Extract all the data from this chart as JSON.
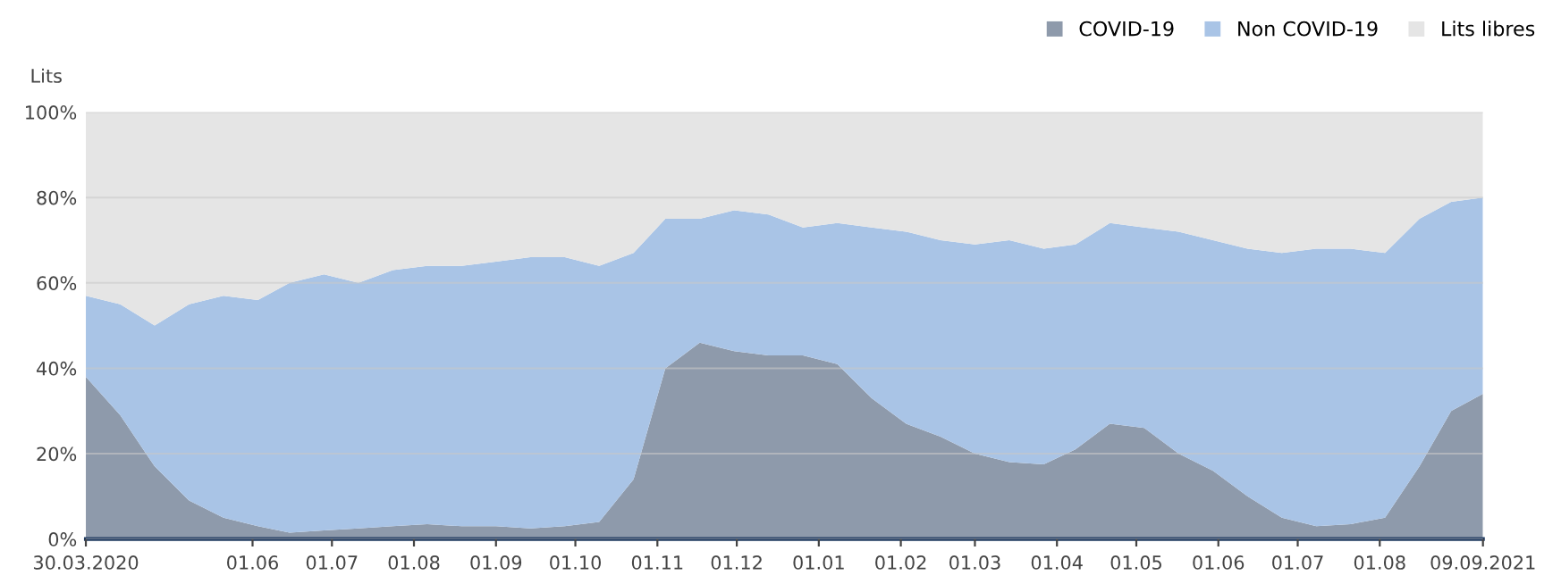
{
  "chart_data": {
    "type": "area",
    "stacked": true,
    "ylabel": "Lits",
    "legend": "top right",
    "grid": "y",
    "x": [
      "2020-03-30",
      "2020-04-12",
      "2020-04-25",
      "2020-05-08",
      "2020-05-21",
      "2020-06-03",
      "2020-06-15",
      "2020-06-28",
      "2020-07-11",
      "2020-07-24",
      "2020-08-06",
      "2020-08-19",
      "2020-09-01",
      "2020-09-14",
      "2020-09-27",
      "2020-10-10",
      "2020-10-23",
      "2020-11-04",
      "2020-11-17",
      "2020-11-30",
      "2020-12-13",
      "2020-12-26",
      "2021-01-08",
      "2021-01-21",
      "2021-02-03",
      "2021-02-16",
      "2021-03-01",
      "2021-03-14",
      "2021-03-27",
      "2021-04-08",
      "2021-04-21",
      "2021-05-04",
      "2021-05-17",
      "2021-05-30",
      "2021-06-12",
      "2021-06-25",
      "2021-07-08",
      "2021-07-21",
      "2021-08-03",
      "2021-08-16",
      "2021-08-28",
      "2021-09-09"
    ],
    "xlim": [
      "2020-03-30",
      "2021-09-09"
    ],
    "xticks": [
      {
        "value": "2020-03-30",
        "label": "30.03.2020"
      },
      {
        "value": "2020-06-01",
        "label": "01.06"
      },
      {
        "value": "2020-07-01",
        "label": "01.07"
      },
      {
        "value": "2020-08-01",
        "label": "01.08"
      },
      {
        "value": "2020-09-01",
        "label": "01.09"
      },
      {
        "value": "2020-10-01",
        "label": "01.10"
      },
      {
        "value": "2020-11-01",
        "label": "01.11"
      },
      {
        "value": "2020-12-01",
        "label": "01.12"
      },
      {
        "value": "2021-01-01",
        "label": "01.01"
      },
      {
        "value": "2021-02-01",
        "label": "01.02"
      },
      {
        "value": "2021-03-01",
        "label": "01.03"
      },
      {
        "value": "2021-04-01",
        "label": "01.04"
      },
      {
        "value": "2021-05-01",
        "label": "01.05"
      },
      {
        "value": "2021-06-01",
        "label": "01.06"
      },
      {
        "value": "2021-07-01",
        "label": "01.07"
      },
      {
        "value": "2021-08-01",
        "label": "01.08"
      },
      {
        "value": "2021-09-09",
        "label": "09.09.2021"
      }
    ],
    "ylim": [
      0,
      100
    ],
    "yticks": [
      {
        "value": 0,
        "label": "0%"
      },
      {
        "value": 20,
        "label": "20%"
      },
      {
        "value": 40,
        "label": "40%"
      },
      {
        "value": 60,
        "label": "60%"
      },
      {
        "value": 80,
        "label": "80%"
      },
      {
        "value": 100,
        "label": "100%"
      }
    ],
    "series": [
      {
        "name": "COVID-19",
        "color": "#8e9aab",
        "values": [
          38,
          29,
          17,
          9,
          5,
          3,
          1.5,
          2,
          2.5,
          3,
          3.5,
          3,
          3,
          2.5,
          3,
          4,
          14,
          40,
          46,
          44,
          43,
          43,
          41,
          33,
          27,
          24,
          20,
          18,
          17.5,
          21,
          27,
          26,
          20,
          16,
          10,
          5,
          3,
          3.5,
          5,
          17,
          30,
          34
        ]
      },
      {
        "name": "Non COVID-19",
        "color": "#a9c4e6",
        "values": [
          19,
          26,
          33,
          46,
          52,
          53,
          58.5,
          60,
          57.5,
          60,
          60.5,
          61,
          62,
          63.5,
          63,
          60,
          53,
          35,
          29,
          33,
          33,
          30,
          33,
          40,
          45,
          46,
          49,
          52,
          50.5,
          48,
          47,
          47,
          52,
          54,
          58,
          62,
          65,
          64.5,
          62,
          58,
          49,
          46
        ]
      },
      {
        "name": "Lits libres",
        "color": "#e5e5e5",
        "values": [
          43,
          45,
          50,
          45,
          43,
          44,
          40,
          38,
          40,
          37,
          36,
          36,
          35,
          34,
          34,
          36,
          33,
          25,
          25,
          23,
          24,
          27,
          26,
          27,
          28,
          30,
          31,
          30,
          32,
          31,
          26,
          27,
          28,
          30,
          32,
          33,
          32,
          32,
          33,
          25,
          21,
          20
        ]
      }
    ]
  }
}
